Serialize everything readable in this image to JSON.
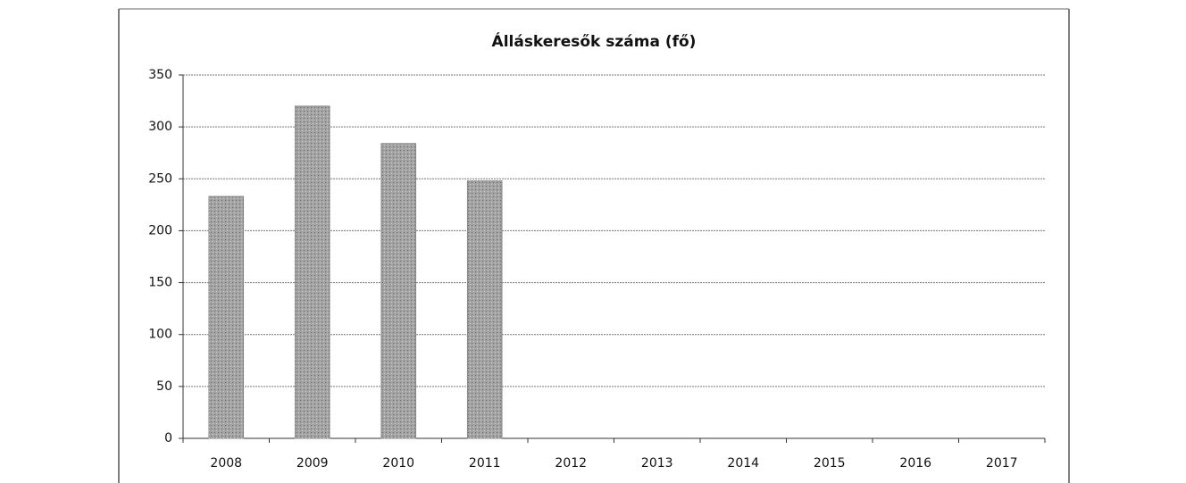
{
  "chart_data": {
    "type": "bar",
    "title": "Álláskeresők száma (fő)",
    "categories": [
      "2008",
      "2009",
      "2010",
      "2011",
      "2012",
      "2013",
      "2014",
      "2015",
      "2016",
      "2017"
    ],
    "values": [
      233,
      320,
      284,
      248,
      null,
      null,
      null,
      null,
      null,
      null
    ],
    "color": "#a3a3a3",
    "ylim": [
      0,
      350
    ],
    "yticks": [
      0,
      50,
      100,
      150,
      200,
      250,
      300,
      350
    ],
    "grid": true
  }
}
